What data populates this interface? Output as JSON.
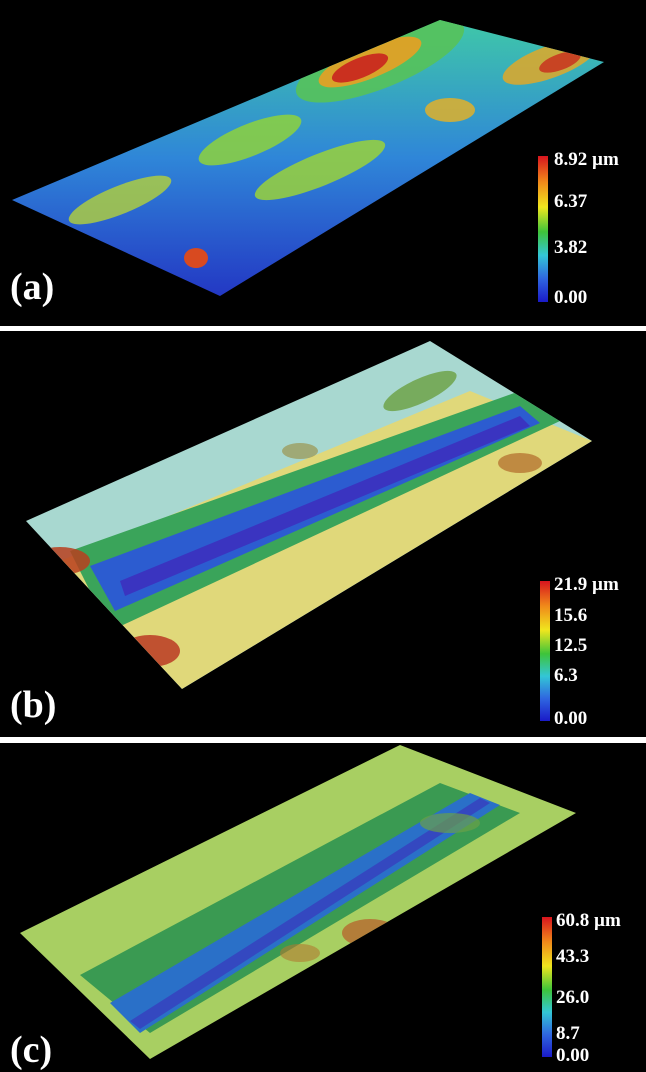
{
  "panels": [
    {
      "label": "(a)",
      "scale": {
        "ticks": [
          "8.92 µm",
          "6.37",
          "3.82",
          "0.00"
        ]
      }
    },
    {
      "label": "(b)",
      "scale": {
        "ticks": [
          "21.9 µm",
          "15.6",
          "12.5",
          "6.3",
          "0.00"
        ]
      }
    },
    {
      "label": "(c)",
      "scale": {
        "ticks": [
          "60.8 µm",
          "43.3",
          "26.0",
          "8.7",
          "0.00"
        ]
      }
    }
  ],
  "colors": {
    "background": "#000000",
    "separator": "#ffffff",
    "scale_max": "#d8141e",
    "scale_mid": "#3ec43a",
    "scale_min": "#1a1ac8"
  }
}
